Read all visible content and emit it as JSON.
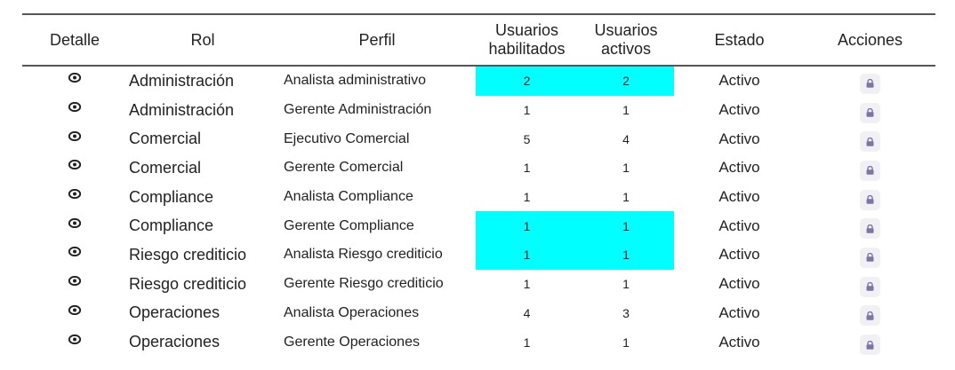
{
  "table": {
    "headers": {
      "detalle": "Detalle",
      "rol": "Rol",
      "perfil": "Perfil",
      "hab_1": "Usuarios",
      "hab_2": "habilitados",
      "act_1": "Usuarios",
      "act_2": "activos",
      "estado": "Estado",
      "acciones": "Acciones"
    },
    "highlight_color": "#00ffff",
    "detail_icon": "eye-icon",
    "action_icon": "lock-icon",
    "rows": [
      {
        "rol": "Administración",
        "perfil": "Analista administrativo",
        "habilitados": "2",
        "activos": "2",
        "estado": "Activo",
        "highlighted": true
      },
      {
        "rol": "Administración",
        "perfil": "Gerente Administración",
        "habilitados": "1",
        "activos": "1",
        "estado": "Activo",
        "highlighted": false
      },
      {
        "rol": "Comercial",
        "perfil": "Ejecutivo Comercial",
        "habilitados": "5",
        "activos": "4",
        "estado": "Activo",
        "highlighted": false
      },
      {
        "rol": "Comercial",
        "perfil": "Gerente Comercial",
        "habilitados": "1",
        "activos": "1",
        "estado": "Activo",
        "highlighted": false
      },
      {
        "rol": "Compliance",
        "perfil": "Analista Compliance",
        "habilitados": "1",
        "activos": "1",
        "estado": "Activo",
        "highlighted": false
      },
      {
        "rol": "Compliance",
        "perfil": "Gerente Compliance",
        "habilitados": "1",
        "activos": "1",
        "estado": "Activo",
        "highlighted": true
      },
      {
        "rol": "Riesgo crediticio",
        "perfil": "Analista Riesgo crediticio",
        "habilitados": "1",
        "activos": "1",
        "estado": "Activo",
        "highlighted": true
      },
      {
        "rol": "Riesgo crediticio",
        "perfil": "Gerente Riesgo crediticio",
        "habilitados": "1",
        "activos": "1",
        "estado": "Activo",
        "highlighted": false
      },
      {
        "rol": "Operaciones",
        "perfil": "Analista Operaciones",
        "habilitados": "4",
        "activos": "3",
        "estado": "Activo",
        "highlighted": false
      },
      {
        "rol": "Operaciones",
        "perfil": "Gerente Operaciones",
        "habilitados": "1",
        "activos": "1",
        "estado": "Activo",
        "highlighted": false
      }
    ]
  }
}
